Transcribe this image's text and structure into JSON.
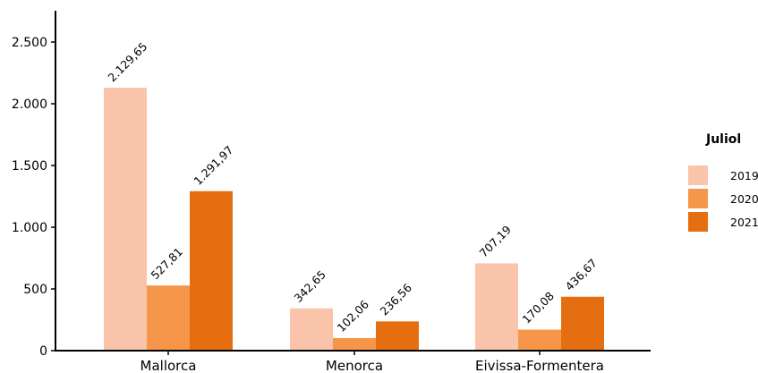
{
  "chart_data": {
    "type": "bar",
    "categories": [
      "Mallorca",
      "Menorca",
      "Eivissa-Formentera"
    ],
    "series": [
      {
        "name": "2019",
        "values": [
          2129.65,
          342.65,
          707.19
        ],
        "labels": [
          "2.129,65",
          "342,65",
          "707,19"
        ],
        "color": "#F9C4A9"
      },
      {
        "name": "2020",
        "values": [
          527.81,
          102.06,
          170.08
        ],
        "labels": [
          "527,81",
          "102,06",
          "170,08"
        ],
        "color": "#F5964A"
      },
      {
        "name": "2021",
        "values": [
          1291.97,
          236.56,
          436.67
        ],
        "labels": [
          "1.291,97",
          "236,56",
          "436,67"
        ],
        "color": "#E56F10"
      }
    ],
    "ylim": [
      0,
      2750
    ],
    "yticks": [
      0,
      500,
      1000,
      1500,
      2000,
      2500
    ],
    "ytick_labels": [
      "0",
      "500",
      "1.000",
      "1.500",
      "2.000",
      "2.500"
    ],
    "legend": {
      "title": "Juliol",
      "position": "right"
    },
    "grid": false,
    "title": "",
    "xlabel": "",
    "ylabel": ""
  }
}
